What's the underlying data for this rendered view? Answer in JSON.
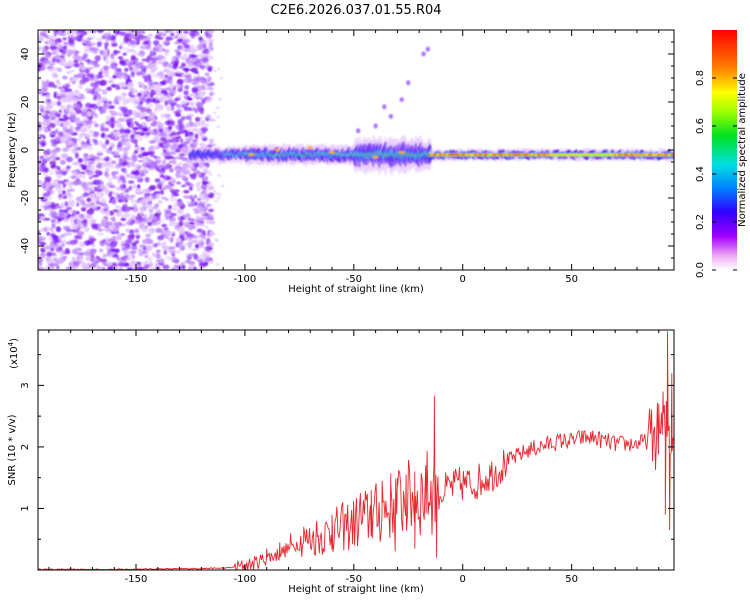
{
  "figure": {
    "title": "C2E6.2026.037.01.55.R04"
  },
  "chart_data": [
    {
      "type": "heatmap",
      "xlabel": "Height of straight line (km)",
      "ylabel": "Frequency (Hz)",
      "xlim": [
        -195,
        97
      ],
      "ylim": [
        -50,
        50
      ],
      "xticks": [
        -150,
        -100,
        -50,
        0,
        50
      ],
      "yticks": [
        -40,
        -20,
        0,
        20,
        40
      ],
      "grid": false,
      "colorbar": {
        "label": "Normalized spectral amplitude",
        "range": [
          0,
          1
        ],
        "ticks": [
          "0.0",
          "0.2",
          "0.4",
          "0.6",
          "0.8"
        ]
      },
      "features": {
        "noise_region_x": [
          -195,
          -120
        ],
        "ridge_center_y": -2,
        "ridge_strong_from_x": -15
      }
    },
    {
      "type": "line",
      "xlabel": "Height of straight line (km)",
      "ylabel": "SNR (10 * v/v)",
      "scale_note": "(x10",
      "scale_exp": "4",
      "scale_close": ")",
      "xlim": [
        -195,
        97
      ],
      "ylim": [
        0,
        3.9
      ],
      "xticks": [
        -150,
        -100,
        -50,
        0,
        50
      ],
      "yticks": [
        1,
        2,
        3
      ],
      "grid": false,
      "series": [
        {
          "color": "#e8262d",
          "points": [
            [
              -195,
              0.01
            ],
            [
              -160,
              0.01
            ],
            [
              -130,
              0.02
            ],
            [
              -110,
              0.03
            ],
            [
              -100,
              0.06
            ],
            [
              -95,
              0.12
            ],
            [
              -90,
              0.2
            ],
            [
              -85,
              0.25
            ],
            [
              -80,
              0.35
            ],
            [
              -75,
              0.45
            ],
            [
              -70,
              0.5
            ],
            [
              -65,
              0.55
            ],
            [
              -60,
              0.62
            ],
            [
              -55,
              0.7
            ],
            [
              -50,
              0.75
            ],
            [
              -45,
              0.85
            ],
            [
              -40,
              0.9
            ],
            [
              -35,
              1.0
            ],
            [
              -30,
              1.1
            ],
            [
              -25,
              1.15
            ],
            [
              -20,
              1.2
            ],
            [
              -15,
              1.3
            ],
            [
              -10,
              1.25
            ],
            [
              -5,
              1.35
            ],
            [
              0,
              1.4
            ],
            [
              5,
              1.4
            ],
            [
              10,
              1.5
            ],
            [
              15,
              1.6
            ],
            [
              20,
              1.75
            ],
            [
              25,
              1.85
            ],
            [
              30,
              1.95
            ],
            [
              35,
              2.0
            ],
            [
              40,
              2.05
            ],
            [
              45,
              2.1
            ],
            [
              50,
              2.1
            ],
            [
              55,
              2.15
            ],
            [
              60,
              2.15
            ],
            [
              65,
              2.1
            ],
            [
              70,
              2.05
            ],
            [
              75,
              2.05
            ],
            [
              80,
              2.05
            ],
            [
              85,
              2.1
            ],
            [
              90,
              2.2
            ],
            [
              94,
              2.3
            ],
            [
              97,
              2.1
            ]
          ],
          "peaks": [
            [
              -13,
              2.83
            ],
            [
              94,
              3.88
            ],
            [
              -22,
              1.6
            ],
            [
              -30,
              1.5
            ],
            [
              -37,
              1.45
            ],
            [
              -42,
              1.3
            ],
            [
              -47,
              1.25
            ],
            [
              -55,
              0.95
            ],
            [
              -60,
              0.9
            ],
            [
              -67,
              0.8
            ],
            [
              -73,
              0.7
            ],
            [
              -79,
              0.6
            ],
            [
              -84,
              0.45
            ],
            [
              -90,
              0.35
            ],
            [
              -17,
              1.7
            ],
            [
              -26,
              1.55
            ],
            [
              -33,
              1.4
            ],
            [
              90,
              2.7
            ],
            [
              96,
              3.2
            ],
            [
              92,
              2.9
            ]
          ],
          "dips": [
            [
              95,
              0.65
            ],
            [
              93,
              0.9
            ],
            [
              -12,
              0.2
            ],
            [
              -22,
              0.35
            ],
            [
              -31,
              0.3
            ]
          ]
        }
      ]
    }
  ]
}
